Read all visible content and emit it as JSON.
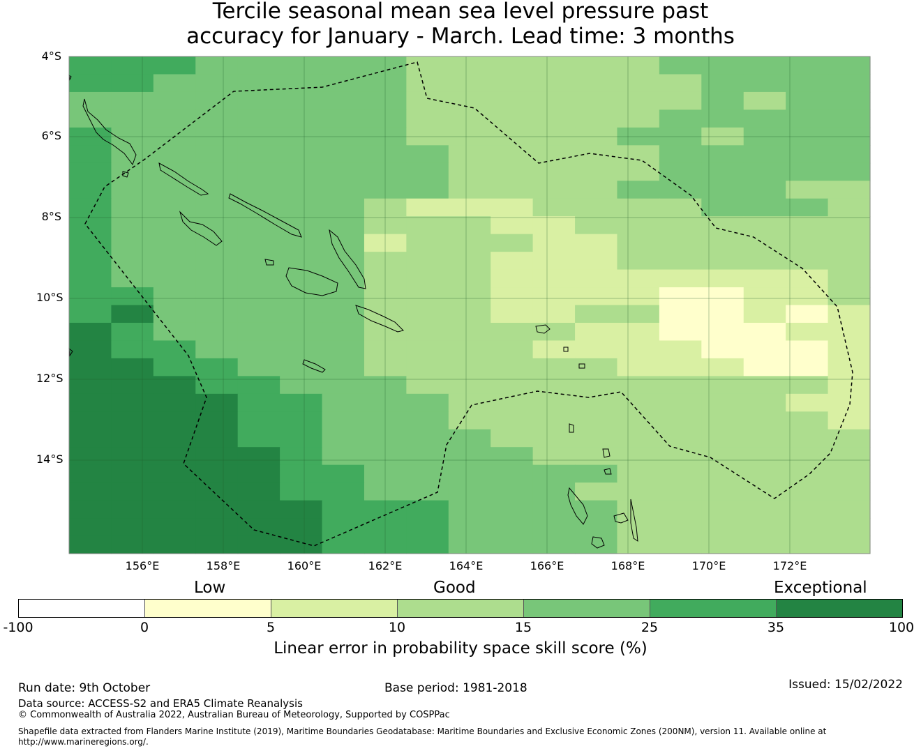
{
  "title": {
    "line1": "Tercile seasonal mean sea level pressure past",
    "line2": "accuracy for January - March. Lead time: 3 months"
  },
  "map": {
    "lat_labels": [
      "4°S",
      "6°S",
      "8°S",
      "10°S",
      "12°S",
      "14°S"
    ],
    "lon_labels": [
      "156°E",
      "158°E",
      "160°E",
      "162°E",
      "164°E",
      "166°E",
      "168°E",
      "170°E",
      "172°E"
    ],
    "extent": {
      "lon_min": 154.2,
      "lon_max": 174.0,
      "lat_min": -16.3,
      "lat_max": -4.0
    },
    "grid_rows": [
      "4443333322222233333",
      "4433333322222223333",
      "3333333322222223233",
      "3333333322222233333",
      "4333333322222332333",
      "4333333332222233333",
      "4333333332222233333",
      "4333333332222333322",
      "4333333211122223332",
      "4333333222112222222",
      "4333333122211222222",
      "4333333222111222222",
      "4333333222111111112",
      "4433333222111100112",
      "4533333222112200101",
      "5433333222221100011",
      "5443333222211110001",
      "5544333222222111001",
      "5554433322222222221",
      "5555443332222222211",
      "5555443332222222221",
      "5555443333222222222",
      "5555543333322222222",
      "5555544333333222222",
      "5555544333332222222",
      "5555554443333222222",
      "5555554443333222222",
      "5555554443333222222"
    ],
    "palette": [
      "#ffffcc",
      "#d9f0a3",
      "#addd8e",
      "#78c679",
      "#41ab5d",
      "#238443"
    ],
    "eez_boundary_color": "#000000"
  },
  "legend": {
    "categories": [
      "Low",
      "Good",
      "Exceptional"
    ],
    "segment_colors": [
      "#ffffff",
      "#ffffcc",
      "#d9f0a3",
      "#addd8e",
      "#78c679",
      "#41ab5d",
      "#238443"
    ],
    "ticks": [
      "-100",
      "0",
      "5",
      "10",
      "15",
      "25",
      "35",
      "100"
    ],
    "label": "Linear error in probability space skill score (%)"
  },
  "footer": {
    "run_date": "Run date: 9th October",
    "base_period": "Base period: 1981-2018",
    "issued": "Issued: 15/02/2022",
    "data_source": "Data source: ACCESS-S2 and ERA5 Climate Reanalysis",
    "copyright": "© Commonwealth of Australia 2022, Australian Bureau of Meteorology, Supported by COSPPac",
    "shapefile_line1": "Shapefile data extracted from Flanders Marine Institute (2019), Maritime Boundaries Geodatabase: Maritime Boundaries and Exclusive Economic Zones (200NM), version 11. Available online at",
    "shapefile_line2": "http://www.marineregions.org/."
  }
}
